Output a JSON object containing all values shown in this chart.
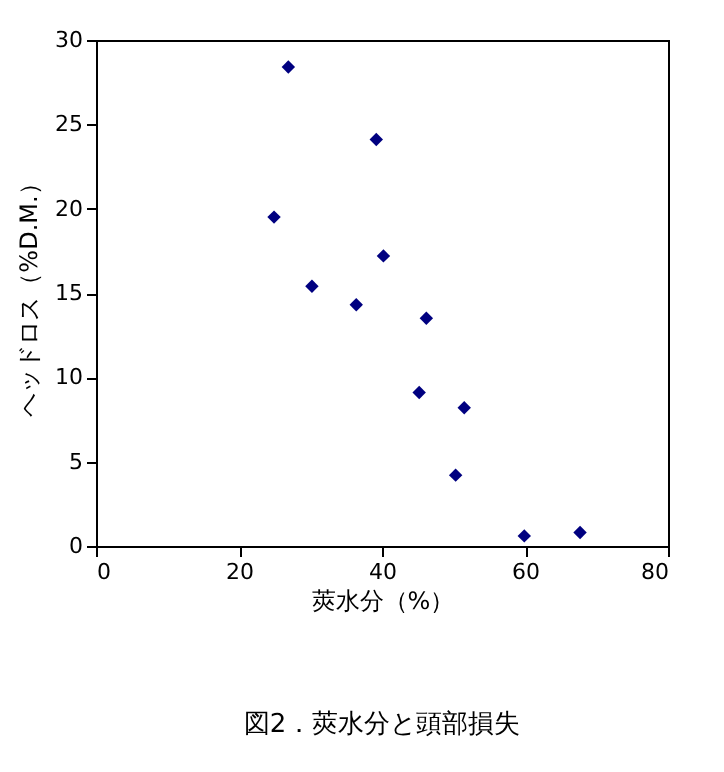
{
  "chart_data": {
    "type": "scatter",
    "title": "図2．莢水分と頭部損失",
    "xlabel": "莢水分（%）",
    "ylabel": "ヘッドロス（%D.M.）",
    "x": [
      26.9,
      39.2,
      24.9,
      40.2,
      30.2,
      36.4,
      46.2,
      45.2,
      51.5,
      50.3,
      59.9,
      67.7
    ],
    "series": [
      {
        "color": "#000080",
        "values": [
          28.4,
          24.1,
          19.5,
          17.2,
          15.4,
          14.3,
          13.5,
          9.1,
          8.2,
          4.2,
          0.6,
          0.8
        ]
      }
    ],
    "xlim": [
      0,
      80
    ],
    "xticks": [
      0,
      20,
      40,
      60,
      80
    ],
    "ylim": [
      0,
      30
    ],
    "yticks": [
      0,
      5,
      10,
      15,
      20,
      25,
      30
    ],
    "marker": "diamond",
    "grid": false,
    "legend": false
  }
}
